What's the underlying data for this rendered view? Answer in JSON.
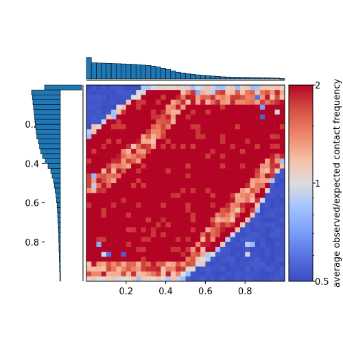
{
  "chart_data": [
    {
      "type": "heatmap",
      "title": "",
      "xlabel": "",
      "ylabel": "",
      "xlim": [
        0.0,
        1.0
      ],
      "ylim": [
        1.0,
        0.0
      ],
      "grid_size": 40,
      "x_ticks": [
        0.2,
        0.4,
        0.6,
        0.8
      ],
      "x_tick_labels": [
        "0.2",
        "0.4",
        "0.6",
        "0.8"
      ],
      "y_ticks": [
        0.2,
        0.4,
        0.6,
        0.8
      ],
      "y_tick_labels": [
        "0.2",
        "0.4",
        "0.6",
        "0.8"
      ],
      "description_of_structure": {
        "low_region_top_left_corner_boundary": [
          [
            0.0,
            0.26
          ],
          [
            0.1,
            0.17
          ],
          [
            0.2,
            0.1
          ],
          [
            0.28,
            0.03
          ],
          [
            0.33,
            0.0
          ]
        ],
        "low_region_bottom_right_boundary": [
          [
            0.45,
            1.0
          ],
          [
            0.55,
            0.93
          ],
          [
            0.65,
            0.85
          ],
          [
            0.75,
            0.76
          ],
          [
            0.85,
            0.65
          ],
          [
            0.92,
            0.53
          ],
          [
            0.97,
            0.43
          ],
          [
            1.0,
            0.38
          ]
        ],
        "diagonal_lighter_stripe_upper": [
          [
            0.08,
            0.5
          ],
          [
            0.2,
            0.38
          ],
          [
            0.3,
            0.3
          ],
          [
            0.38,
            0.2
          ],
          [
            0.45,
            0.12
          ],
          [
            0.5,
            0.05
          ]
        ],
        "diagonal_lighter_stripe_lower": [
          [
            0.5,
            0.95
          ],
          [
            0.58,
            0.82
          ],
          [
            0.65,
            0.72
          ],
          [
            0.78,
            0.6
          ],
          [
            0.88,
            0.48
          ],
          [
            0.95,
            0.4
          ]
        ]
      },
      "outlier_cells": [
        {
          "x": 0.56,
          "y": 0.04,
          "value": 0.75
        },
        {
          "x": 0.63,
          "y": 0.04,
          "value": 0.9
        },
        {
          "x": 0.86,
          "y": 0.07,
          "value": 0.6
        },
        {
          "x": 0.89,
          "y": 0.1,
          "value": 0.7
        },
        {
          "x": 0.96,
          "y": 0.14,
          "value": 0.95
        },
        {
          "x": 0.89,
          "y": 0.17,
          "value": 0.55
        },
        {
          "x": 0.04,
          "y": 0.45,
          "value": 0.8
        },
        {
          "x": 0.03,
          "y": 0.5,
          "value": 0.9
        },
        {
          "x": 0.07,
          "y": 0.82,
          "value": 0.75
        },
        {
          "x": 0.1,
          "y": 0.85,
          "value": 0.6
        },
        {
          "x": 0.08,
          "y": 0.87,
          "value": 0.95
        },
        {
          "x": 0.18,
          "y": 0.87,
          "value": 0.55
        },
        {
          "x": 0.8,
          "y": 0.8,
          "value": 0.9
        },
        {
          "x": 0.84,
          "y": 0.81,
          "value": 0.8
        },
        {
          "x": 0.82,
          "y": 0.85,
          "value": 0.95
        }
      ]
    },
    {
      "type": "colorbar",
      "label": "average observed/expected contact frequency",
      "scale": "log",
      "range": [
        0.5,
        2
      ],
      "ticks": [
        0.5,
        1,
        2
      ],
      "tick_labels": [
        "0.5",
        "1",
        "2"
      ],
      "colormap": "coolwarm",
      "colors": {
        "low": "#3b4cc0",
        "mid": "#dddddd",
        "high": "#b40426"
      }
    },
    {
      "type": "bar",
      "position": "top",
      "orientation": "vertical-downward",
      "bins": 40,
      "values": [
        1.0,
        0.72,
        0.71,
        0.7,
        0.69,
        0.68,
        0.67,
        0.66,
        0.65,
        0.64,
        0.62,
        0.6,
        0.58,
        0.55,
        0.5,
        0.44,
        0.37,
        0.3,
        0.23,
        0.19,
        0.15,
        0.12,
        0.09,
        0.07,
        0.05,
        0.03,
        0.01,
        -0.01,
        -0.02,
        -0.03,
        -0.03,
        -0.04,
        -0.04,
        -0.05,
        -0.05,
        -0.06,
        -0.06,
        -0.07,
        -0.08,
        -0.1
      ],
      "color": "#1f77b4"
    },
    {
      "type": "bar",
      "position": "left",
      "orientation": "horizontal",
      "bins": 40,
      "values": [
        1.35,
        1.05,
        1.02,
        1.0,
        0.98,
        0.96,
        0.94,
        0.92,
        0.9,
        0.88,
        0.86,
        0.8,
        0.76,
        0.72,
        0.65,
        0.55,
        0.45,
        0.35,
        0.3,
        0.25,
        0.22,
        0.19,
        0.16,
        0.14,
        0.12,
        0.11,
        0.1,
        0.09,
        0.08,
        0.07,
        0.06,
        0.06,
        0.05,
        0.05,
        0.04,
        0.04,
        0.03,
        0.03,
        0.02,
        0.02
      ],
      "color": "#1f77b4"
    }
  ]
}
